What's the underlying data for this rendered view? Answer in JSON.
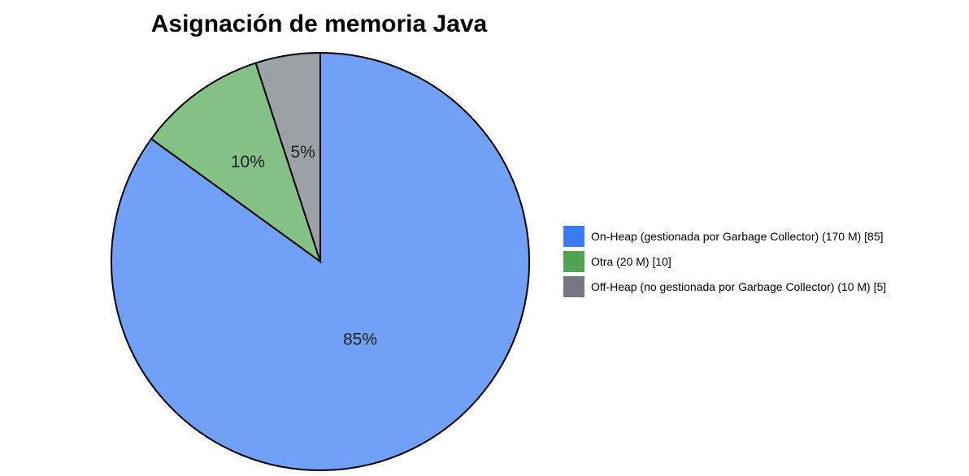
{
  "chart_data": {
    "type": "pie",
    "title": "Asignación de memoria Java",
    "slices": [
      {
        "legend": "On-Heap (gestionada por Garbage Collector) (170 M) [85]",
        "value": 85,
        "label": "85%",
        "color": "#70a1f7",
        "swatch": "#3a7bf0"
      },
      {
        "legend": "Otra (20 M) [10]",
        "value": 10,
        "label": "10%",
        "color": "#84c185",
        "swatch": "#4fa553"
      },
      {
        "legend": "Off-Heap (no gestionada por Garbage Collector) (10 M) [5]",
        "value": 5,
        "label": "5%",
        "color": "#9ca1a6",
        "swatch": "#747880"
      }
    ],
    "legend_position": "right"
  }
}
